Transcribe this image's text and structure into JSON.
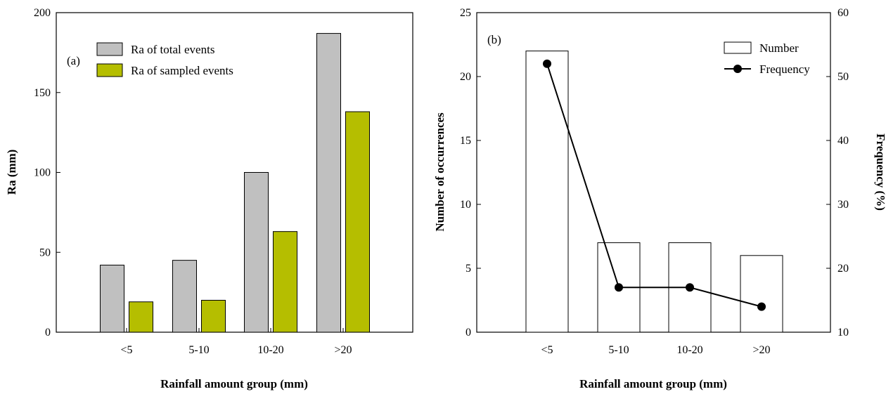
{
  "chart_data": [
    {
      "type": "bar",
      "panel_label": "(a)",
      "categories": [
        "<5",
        "5-10",
        "10-20",
        ">20"
      ],
      "series": [
        {
          "name": "Ra of total events",
          "values": [
            42,
            45,
            100,
            187
          ],
          "color": "#c0c0c0"
        },
        {
          "name": "Ra of sampled events",
          "values": [
            19,
            20,
            63,
            138
          ],
          "color": "#b5be00"
        }
      ],
      "xlabel": "Rainfall amount group (mm)",
      "ylabel": "Ra (mm)",
      "ylim": [
        0,
        200
      ],
      "yticks": [
        0,
        50,
        100,
        150,
        200
      ],
      "legend": "top-left",
      "grid": false
    },
    {
      "type": "bar",
      "panel_label": "(b)",
      "categories": [
        "<5",
        "5-10",
        "10-20",
        ">20"
      ],
      "series": [
        {
          "name": "Number",
          "values": [
            22,
            7,
            7,
            6
          ],
          "color": "#ffffff",
          "axis": "left",
          "kind": "bar"
        },
        {
          "name": "Frequency",
          "values": [
            52,
            17,
            17,
            14
          ],
          "color": "#000000",
          "axis": "right",
          "kind": "line"
        }
      ],
      "xlabel": "Rainfall amount group (mm)",
      "ylabel": "Number of occurrences",
      "y2label": "Frequency (%)",
      "ylim": [
        0,
        25
      ],
      "yticks": [
        0,
        5,
        10,
        15,
        20,
        25
      ],
      "y2lim": [
        10,
        60
      ],
      "y2ticks": [
        10,
        20,
        30,
        40,
        50,
        60
      ],
      "legend": "top-right",
      "grid": false
    }
  ]
}
